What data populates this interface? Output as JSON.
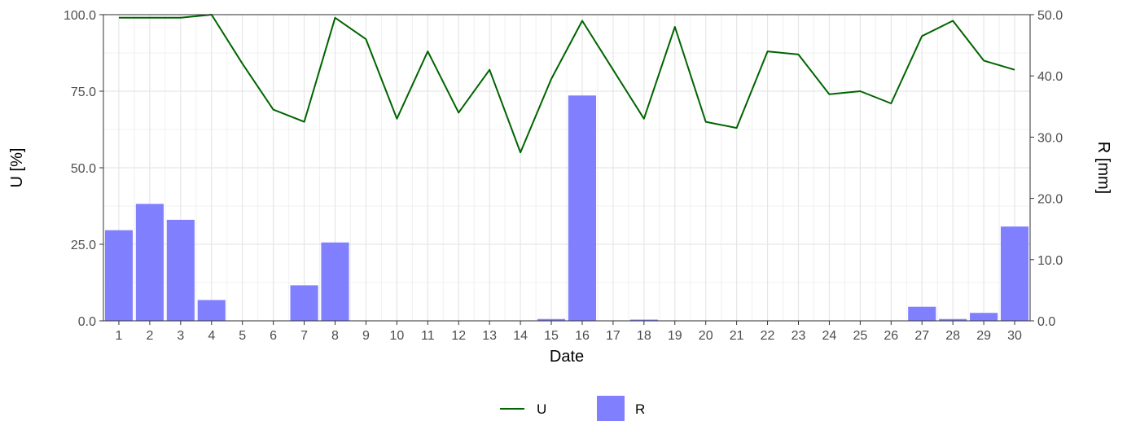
{
  "chart_data": {
    "type": "bar",
    "xlabel": "Date",
    "ylabel": "U [%]",
    "y2label": "R [mm]",
    "categories": [
      "1",
      "2",
      "3",
      "4",
      "5",
      "6",
      "7",
      "8",
      "9",
      "10",
      "11",
      "12",
      "13",
      "14",
      "15",
      "16",
      "17",
      "18",
      "19",
      "20",
      "21",
      "22",
      "23",
      "24",
      "25",
      "26",
      "27",
      "28",
      "29",
      "30"
    ],
    "ylim": [
      0,
      100
    ],
    "y2lim": [
      0,
      50
    ],
    "yticks": [
      "0.0",
      "25.0",
      "50.0",
      "75.0",
      "100.0"
    ],
    "y2ticks": [
      "0.0",
      "10.0",
      "20.0",
      "30.0",
      "40.0",
      "50.0"
    ],
    "grid": true,
    "legend_position": "bottom",
    "series": [
      {
        "name": "U",
        "type": "line",
        "axis": "left",
        "color": "#006400",
        "values": [
          99,
          99,
          99,
          100,
          84,
          69,
          65,
          99,
          92,
          66,
          88,
          68,
          82,
          55,
          79,
          98,
          82,
          66,
          96,
          65,
          63,
          88,
          87,
          74,
          75,
          71,
          93,
          98,
          85,
          82
        ]
      },
      {
        "name": "R",
        "type": "bar",
        "axis": "right",
        "color": "#8080ff",
        "values": [
          14.8,
          19.1,
          16.5,
          3.4,
          0,
          0,
          5.8,
          12.8,
          0,
          0,
          0,
          0,
          0,
          0,
          0.3,
          36.8,
          0,
          0.2,
          0,
          0,
          0,
          0,
          0,
          0,
          0,
          0,
          2.3,
          0.3,
          1.3,
          15.4
        ]
      }
    ]
  }
}
